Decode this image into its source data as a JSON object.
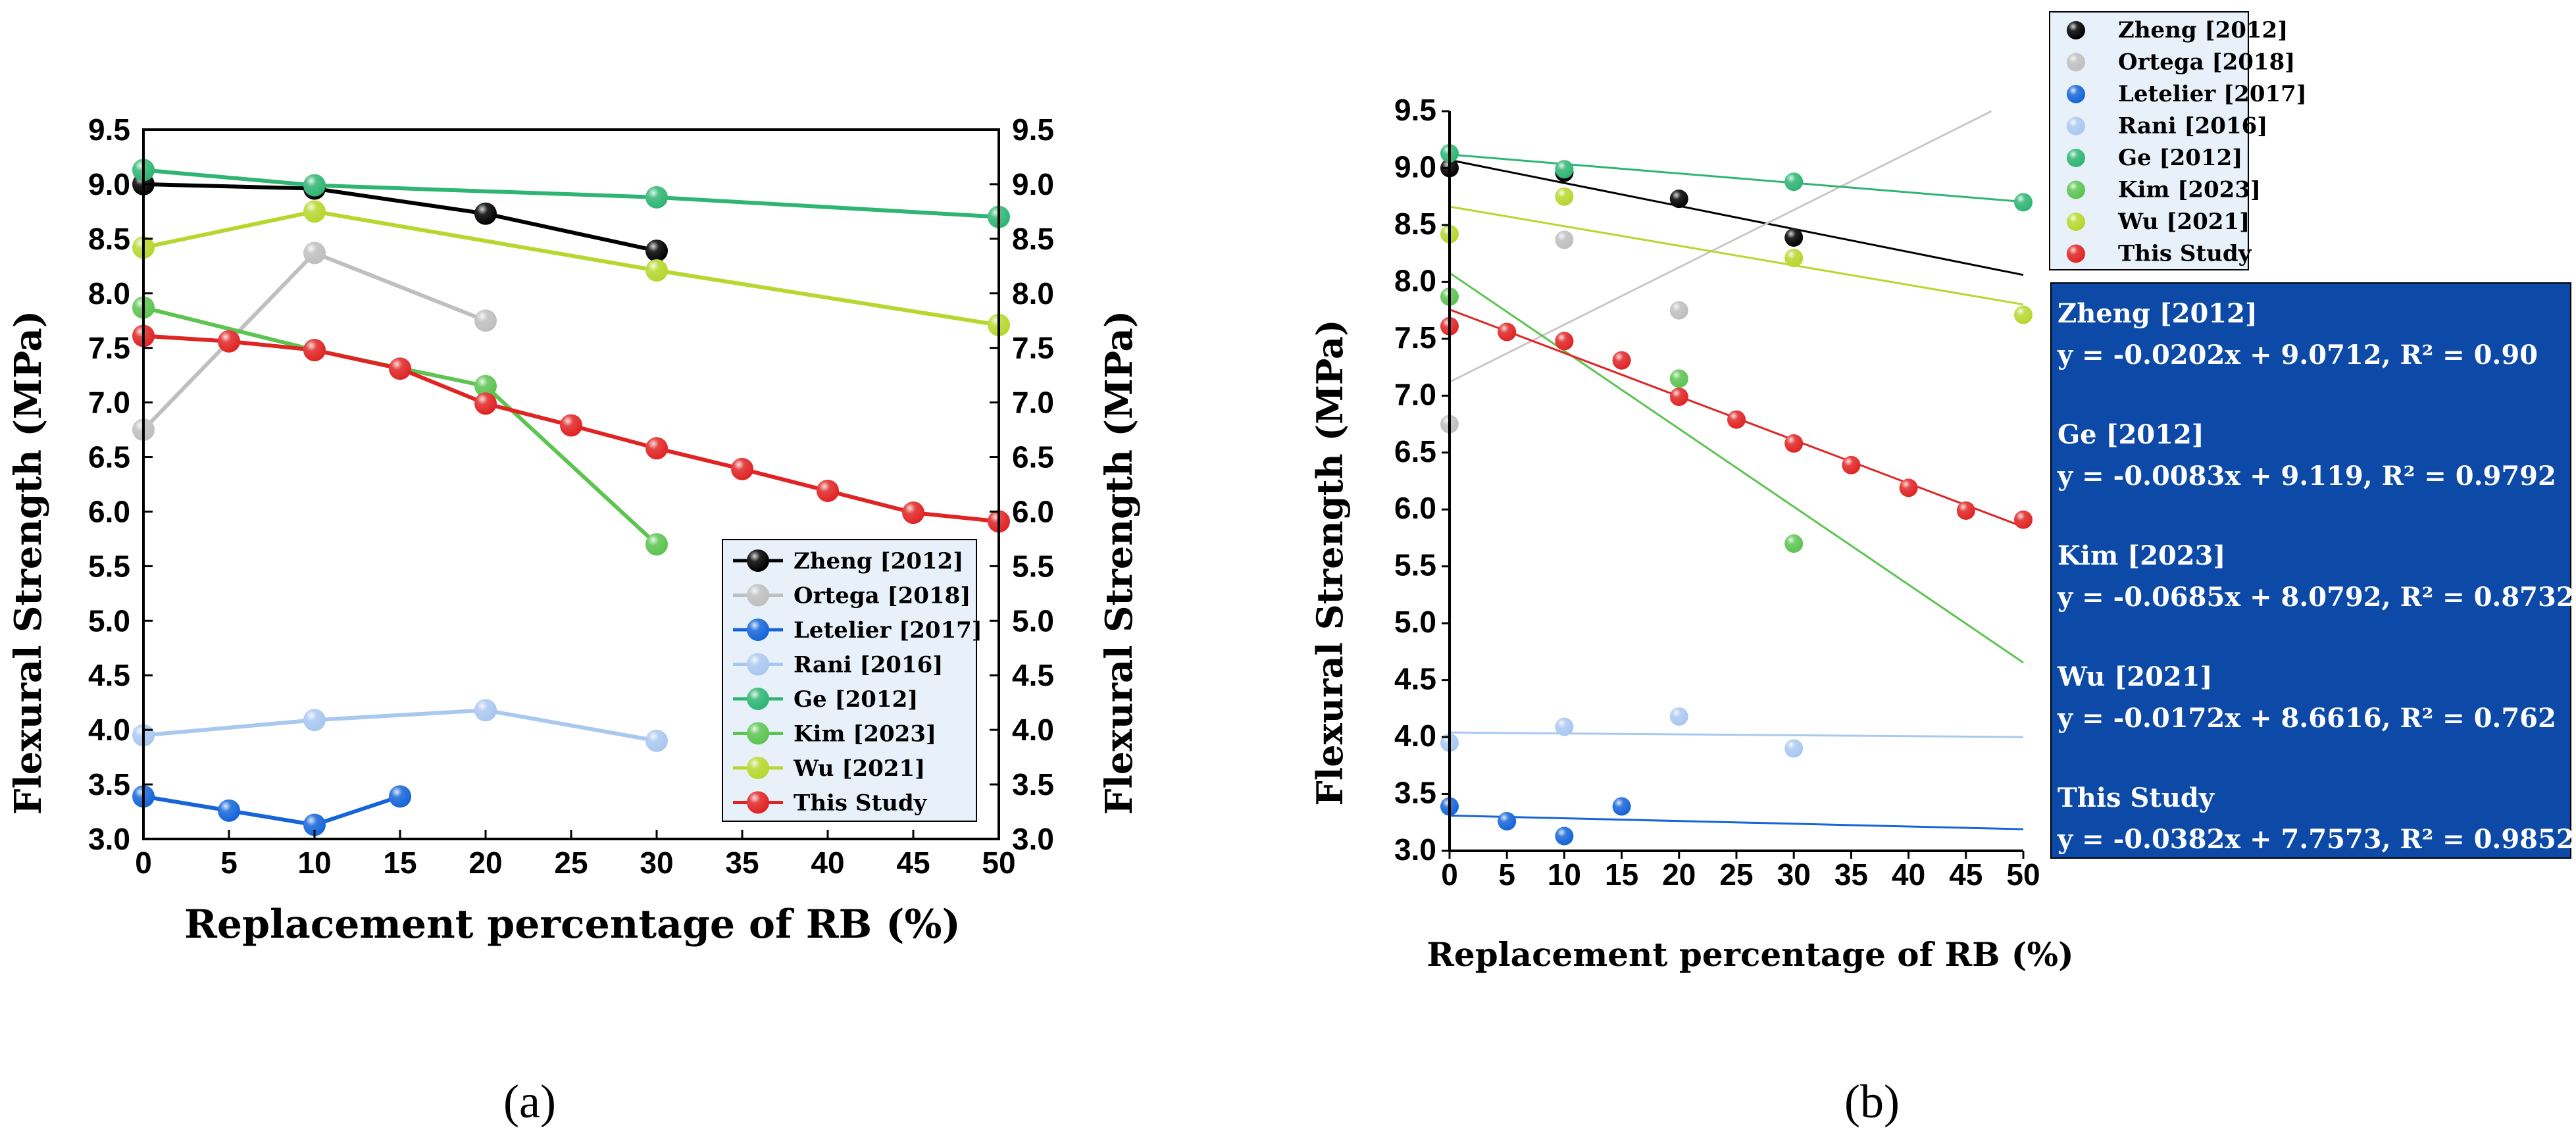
{
  "chart_data": [
    {
      "panel": "a",
      "type": "line",
      "xlabel": "Replacement percentage of RB (%)",
      "ylabel_left": "Flexural Strength (MPa)",
      "ylabel_right": "Flexural Strength (MPa)",
      "xlim": [
        0,
        50
      ],
      "ylim": [
        3.0,
        9.5
      ],
      "x_ticks": [
        0,
        5,
        10,
        15,
        20,
        25,
        30,
        35,
        40,
        45,
        50
      ],
      "y_ticks": [
        3.0,
        3.5,
        4.0,
        4.5,
        5.0,
        5.5,
        6.0,
        6.5,
        7.0,
        7.5,
        8.0,
        8.5,
        9.0,
        9.5
      ],
      "legend_position": "bottom-right",
      "series": [
        {
          "name": "Zheng [2012]",
          "color": "#000000",
          "x": [
            0,
            10,
            20,
            30
          ],
          "y": [
            9.0,
            8.96,
            8.73,
            8.39
          ]
        },
        {
          "name": "Ortega [2018]",
          "color": "#bfbfbf",
          "x": [
            0,
            10,
            20
          ],
          "y": [
            6.75,
            8.37,
            7.75
          ]
        },
        {
          "name": "Letelier [2017]",
          "color": "#1565d8",
          "x": [
            0,
            5,
            10,
            15
          ],
          "y": [
            3.39,
            3.26,
            3.13,
            3.39
          ]
        },
        {
          "name": "Rani [2016]",
          "color": "#a9c8f0",
          "x": [
            0,
            10,
            20,
            30
          ],
          "y": [
            3.95,
            4.09,
            4.18,
            3.9
          ]
        },
        {
          "name": "Ge [2012]",
          "color": "#2fb573",
          "x": [
            0,
            10,
            30,
            50
          ],
          "y": [
            9.13,
            8.99,
            8.88,
            8.7
          ]
        },
        {
          "name": "Kim [2023]",
          "color": "#5cc451",
          "x": [
            0,
            10,
            20,
            30
          ],
          "y": [
            7.87,
            7.48,
            7.15,
            5.7
          ]
        },
        {
          "name": "Wu [2021]",
          "color": "#b7d72e",
          "x": [
            0,
            10,
            30,
            50
          ],
          "y": [
            8.42,
            8.75,
            8.21,
            7.71
          ]
        },
        {
          "name": "This Study",
          "color": "#e02424",
          "x": [
            0,
            5,
            10,
            15,
            20,
            25,
            30,
            35,
            40,
            45,
            50
          ],
          "y": [
            7.61,
            7.56,
            7.48,
            7.31,
            6.99,
            6.79,
            6.58,
            6.39,
            6.19,
            5.99,
            5.91
          ]
        }
      ]
    },
    {
      "panel": "b",
      "type": "scatter",
      "xlabel": "Replacement percentage of RB (%)",
      "ylabel": "Flexural Strength (MPa)",
      "xlim": [
        0,
        50
      ],
      "ylim": [
        3.0,
        9.5
      ],
      "x_ticks": [
        0,
        5,
        10,
        15,
        20,
        25,
        30,
        35,
        40,
        45,
        50
      ],
      "y_ticks": [
        3.0,
        3.5,
        4.0,
        4.5,
        5.0,
        5.5,
        6.0,
        6.5,
        7.0,
        7.5,
        8.0,
        8.5,
        9.0,
        9.5
      ],
      "legend_position": "top-right (outside)",
      "trendlines": [
        {
          "name": "Zheng [2012]",
          "color": "#000000",
          "slope": -0.0202,
          "intercept": 9.0712
        },
        {
          "name": "Ortega [2018]",
          "color": "#c8c8c8",
          "slope": 0.0504,
          "intercept": 7.12
        },
        {
          "name": "Letelier [2017]",
          "color": "#1565d8",
          "slope": -0.0024,
          "intercept": 3.31
        },
        {
          "name": "Rani [2016]",
          "color": "#a9c8f0",
          "slope": -0.0008,
          "intercept": 4.04
        },
        {
          "name": "Ge [2012]",
          "color": "#2fb573",
          "slope": -0.0083,
          "intercept": 9.119
        },
        {
          "name": "Kim [2023]",
          "color": "#5cc451",
          "slope": -0.0685,
          "intercept": 8.0792
        },
        {
          "name": "Wu [2021]",
          "color": "#b7d72e",
          "slope": -0.0172,
          "intercept": 8.6616
        },
        {
          "name": "This Study",
          "color": "#e02424",
          "slope": -0.0382,
          "intercept": 7.7573
        }
      ]
    }
  ],
  "legend_labels": [
    "Zheng [2012]",
    "Ortega [2018]",
    "Letelier [2017]",
    "Rani [2016]",
    "Ge [2012]",
    "Kim [2023]",
    "Wu [2021]",
    "This Study"
  ],
  "equations": [
    {
      "name": "Zheng [2012]",
      "eq": "y = -0.0202x + 9.0712, R² = 0.90"
    },
    {
      "name": "Ge [2012]",
      "eq": "y = -0.0083x + 9.119, R² = 0.9792"
    },
    {
      "name": "Kim [2023]",
      "eq": "y = -0.0685x + 8.0792, R² = 0.8732"
    },
    {
      "name": "Wu [2021]",
      "eq": "y = -0.0172x + 8.6616, R² = 0.762"
    },
    {
      "name": "This Study",
      "eq": "y = -0.0382x + 7.7573, R² = 0.9852"
    }
  ],
  "panel_labels": {
    "a": "(a)",
    "b": "(b)"
  },
  "colors": {
    "equation_box": "#0d4aa8"
  }
}
